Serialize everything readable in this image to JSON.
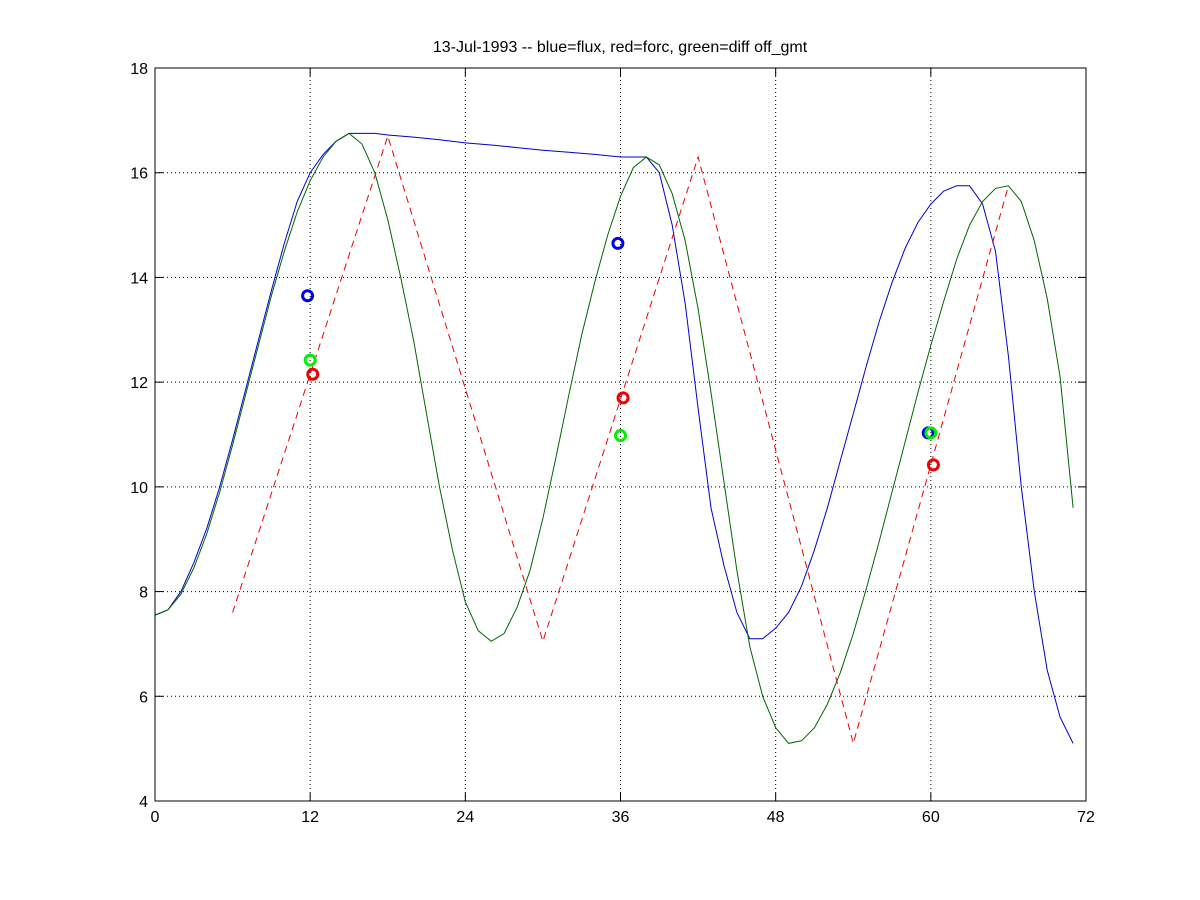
{
  "chart_data": {
    "type": "line",
    "title": "13-Jul-1993 -- blue=flux, red=forc, green=diff off_gmt",
    "xlabel": "",
    "ylabel": "",
    "xlim": [
      0,
      72
    ],
    "ylim": [
      4,
      18
    ],
    "xticks": [
      0,
      12,
      24,
      36,
      48,
      60,
      72
    ],
    "yticks": [
      4,
      6,
      8,
      10,
      12,
      14,
      16,
      18
    ],
    "grid": true,
    "grid_style": "dotted",
    "series": [
      {
        "color": "#0000cc",
        "style": "solid",
        "x": [
          0,
          1,
          2,
          3,
          4,
          5,
          6,
          7,
          8,
          9,
          10,
          11,
          12,
          13,
          14,
          15,
          16,
          17,
          18,
          20,
          22,
          24,
          26,
          28,
          30,
          32,
          34,
          36,
          37,
          38,
          39,
          40,
          41,
          42,
          43,
          44,
          45,
          46,
          47,
          48,
          49,
          50,
          51,
          52,
          53,
          54,
          55,
          56,
          57,
          58,
          59,
          60,
          61,
          62,
          63,
          64,
          65,
          66,
          67,
          68,
          69,
          70,
          71
        ],
        "y": [
          7.55,
          7.65,
          8.0,
          8.55,
          9.2,
          10.0,
          10.9,
          11.85,
          12.8,
          13.75,
          14.65,
          15.45,
          16.0,
          16.35,
          16.6,
          16.75,
          16.75,
          16.75,
          16.72,
          16.68,
          16.63,
          16.57,
          16.53,
          16.48,
          16.43,
          16.39,
          16.35,
          16.3,
          16.3,
          16.3,
          16.0,
          15.0,
          13.5,
          11.5,
          9.6,
          8.5,
          7.6,
          7.1,
          7.1,
          7.3,
          7.6,
          8.1,
          8.8,
          9.6,
          10.5,
          11.4,
          12.3,
          13.15,
          13.9,
          14.55,
          15.05,
          15.4,
          15.65,
          15.75,
          15.75,
          15.4,
          14.5,
          12.5,
          10.0,
          8.0,
          6.5,
          5.6,
          5.1
        ]
      },
      {
        "color": "#006600",
        "style": "solid",
        "x": [
          0,
          1,
          2,
          3,
          4,
          5,
          6,
          7,
          8,
          9,
          10,
          11,
          12,
          13,
          14,
          15,
          16,
          17,
          18,
          19,
          20,
          21,
          22,
          23,
          24,
          25,
          26,
          27,
          28,
          29,
          30,
          31,
          32,
          33,
          34,
          35,
          36,
          37,
          38,
          39,
          40,
          41,
          42,
          43,
          44,
          45,
          46,
          47,
          48,
          49,
          50,
          51,
          52,
          53,
          54,
          55,
          56,
          57,
          58,
          59,
          60,
          61,
          62,
          63,
          64,
          65,
          66,
          67,
          68,
          69,
          70,
          71
        ],
        "y": [
          7.55,
          7.65,
          7.95,
          8.45,
          9.1,
          9.9,
          10.8,
          11.75,
          12.7,
          13.65,
          14.5,
          15.25,
          15.85,
          16.3,
          16.6,
          16.75,
          16.55,
          16.0,
          15.1,
          14.0,
          12.8,
          11.4,
          10.0,
          8.8,
          7.8,
          7.25,
          7.05,
          7.2,
          7.7,
          8.4,
          9.4,
          10.55,
          11.75,
          12.9,
          13.9,
          14.8,
          15.55,
          16.1,
          16.3,
          16.15,
          15.6,
          14.7,
          13.4,
          11.8,
          10.1,
          8.4,
          6.95,
          6.0,
          5.4,
          5.1,
          5.15,
          5.4,
          5.85,
          6.45,
          7.2,
          8.05,
          8.95,
          9.9,
          10.85,
          11.8,
          12.7,
          13.55,
          14.35,
          15.0,
          15.45,
          15.7,
          15.75,
          15.45,
          14.7,
          13.6,
          12.1,
          9.6
        ]
      },
      {
        "color": "#ee0000",
        "style": "dashed",
        "x": [
          6,
          18,
          30,
          42,
          54,
          66
        ],
        "y": [
          7.6,
          16.7,
          7.05,
          16.3,
          5.1,
          15.75
        ]
      }
    ],
    "markers": [
      {
        "color": "#0000ee",
        "x": 11.8,
        "y": 13.65
      },
      {
        "color": "#00ee00",
        "x": 12.0,
        "y": 12.42
      },
      {
        "color": "#ee0000",
        "x": 12.2,
        "y": 12.15
      },
      {
        "color": "#0000ee",
        "x": 35.8,
        "y": 14.65
      },
      {
        "color": "#ee0000",
        "x": 36.2,
        "y": 11.7
      },
      {
        "color": "#00ee00",
        "x": 36.0,
        "y": 10.98
      },
      {
        "color": "#0000ee",
        "x": 59.8,
        "y": 11.03
      },
      {
        "color": "#00ee00",
        "x": 60.0,
        "y": 11.03
      },
      {
        "color": "#ee0000",
        "x": 60.2,
        "y": 10.42
      }
    ]
  }
}
